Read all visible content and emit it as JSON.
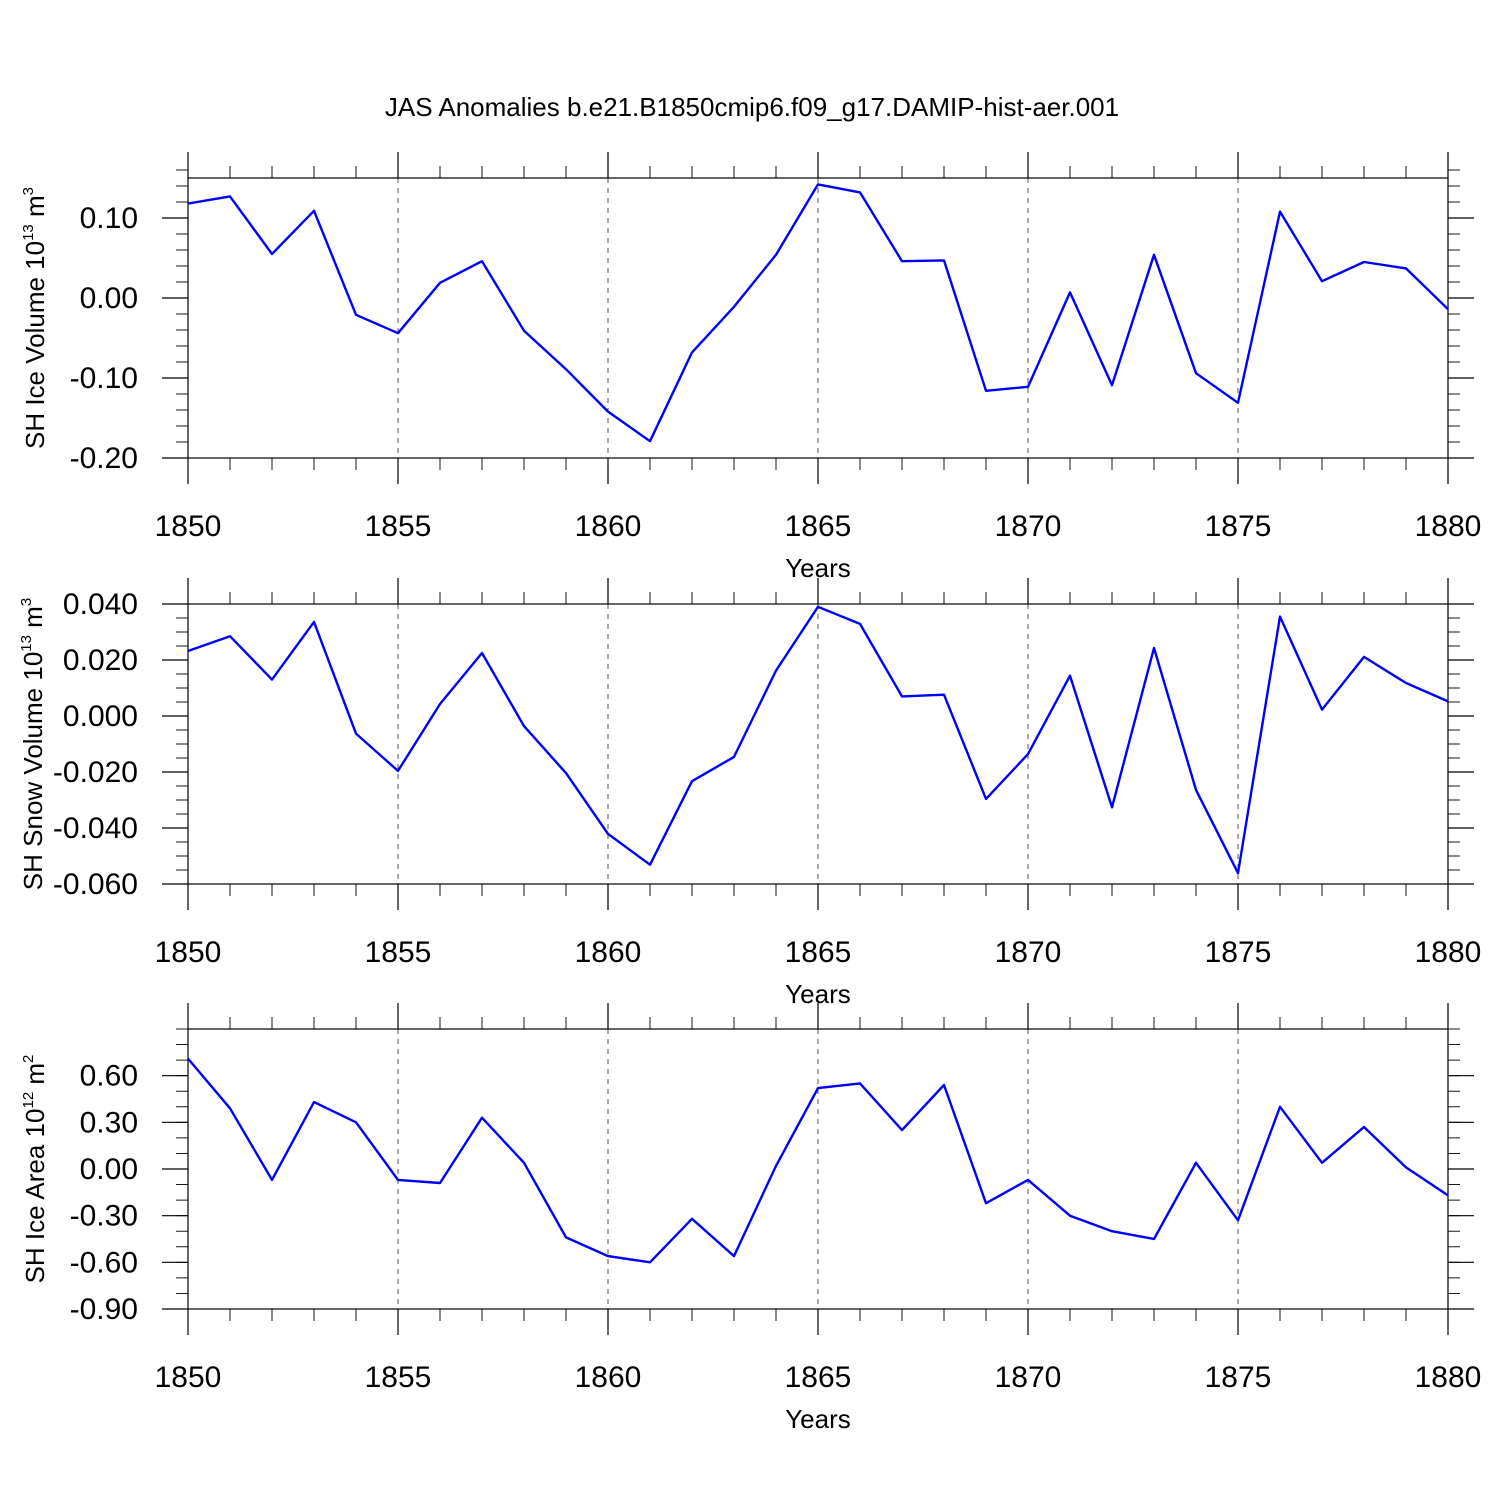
{
  "title": "JAS Anomalies b.e21.B1850cmip6.f09_g17.DAMIP-hist-aer.001",
  "colors": {
    "line": "#0000ff",
    "axis": "#000000",
    "grid": "#555555"
  },
  "chart_data": [
    {
      "type": "line",
      "ylabel_main": "SH Ice Volume 10",
      "ylabel_exp": "13",
      "ylabel_unit": " m",
      "ylabel_unit_exp": "3",
      "xlabel": "Years",
      "xlim": [
        1850,
        1880
      ],
      "ylim": [
        -0.2,
        0.15
      ],
      "yticks": [
        -0.2,
        -0.1,
        0.0,
        0.1
      ],
      "ytick_labels": [
        "-0.20",
        "-0.10",
        "0.00",
        "0.10"
      ],
      "yminor_step": 0.02,
      "xticks": [
        1850,
        1855,
        1860,
        1865,
        1870,
        1875,
        1880
      ],
      "xtick_labels": [
        "1850",
        "1855",
        "1860",
        "1865",
        "1870",
        "1875",
        "1880"
      ],
      "grid_x": [
        1855,
        1860,
        1865,
        1870,
        1875
      ],
      "series": [
        {
          "name": "SH Ice Volume",
          "x": [
            1850,
            1851,
            1852,
            1853,
            1854,
            1855,
            1856,
            1857,
            1858,
            1859,
            1860,
            1861,
            1862,
            1863,
            1864,
            1865,
            1866,
            1867,
            1868,
            1869,
            1870,
            1871,
            1872,
            1873,
            1874,
            1875,
            1876,
            1877,
            1878,
            1879,
            1880
          ],
          "values": [
            0.118,
            0.127,
            0.055,
            0.109,
            -0.021,
            -0.044,
            0.019,
            0.046,
            -0.041,
            -0.089,
            -0.142,
            -0.179,
            -0.068,
            -0.011,
            0.054,
            0.142,
            0.132,
            0.046,
            0.047,
            -0.116,
            -0.111,
            0.007,
            -0.109,
            0.054,
            -0.094,
            -0.131,
            0.108,
            0.021,
            0.045,
            0.037,
            -0.014
          ]
        }
      ]
    },
    {
      "type": "line",
      "ylabel_main": "SH Snow Volume 10",
      "ylabel_exp": "13",
      "ylabel_unit": " m",
      "ylabel_unit_exp": "3",
      "xlabel": "Years",
      "xlim": [
        1850,
        1880
      ],
      "ylim": [
        -0.06,
        0.04
      ],
      "yticks": [
        -0.06,
        -0.04,
        -0.02,
        0.0,
        0.02,
        0.04
      ],
      "ytick_labels": [
        "-0.060",
        "-0.040",
        "-0.020",
        "0.000",
        "0.020",
        "0.040"
      ],
      "yminor_step": 0.005,
      "xticks": [
        1850,
        1855,
        1860,
        1865,
        1870,
        1875,
        1880
      ],
      "xtick_labels": [
        "1850",
        "1855",
        "1860",
        "1865",
        "1870",
        "1875",
        "1880"
      ],
      "grid_x": [
        1855,
        1860,
        1865,
        1870,
        1875
      ],
      "series": [
        {
          "name": "SH Snow Volume",
          "x": [
            1850,
            1851,
            1852,
            1853,
            1854,
            1855,
            1856,
            1857,
            1858,
            1859,
            1860,
            1861,
            1862,
            1863,
            1864,
            1865,
            1866,
            1867,
            1868,
            1869,
            1870,
            1871,
            1872,
            1873,
            1874,
            1875,
            1876,
            1877,
            1878,
            1879,
            1880
          ],
          "values": [
            0.0232,
            0.0285,
            0.013,
            0.0336,
            -0.0063,
            -0.0196,
            0.0043,
            0.0225,
            -0.0036,
            -0.0204,
            -0.0421,
            -0.0531,
            -0.0233,
            -0.0146,
            0.0162,
            0.039,
            0.0329,
            0.007,
            0.0076,
            -0.0296,
            -0.0136,
            0.0144,
            -0.0326,
            0.0243,
            -0.0264,
            -0.0561,
            0.0355,
            0.0023,
            0.0211,
            0.0118,
            0.0052
          ]
        }
      ]
    },
    {
      "type": "line",
      "ylabel_main": "SH Ice Area 10",
      "ylabel_exp": "12",
      "ylabel_unit": " m",
      "ylabel_unit_exp": "2",
      "xlabel": "Years",
      "xlim": [
        1850,
        1880
      ],
      "ylim": [
        -0.9,
        0.9
      ],
      "yticks": [
        -0.9,
        -0.6,
        -0.3,
        0.0,
        0.3,
        0.6
      ],
      "ytick_labels": [
        "-0.90",
        "-0.60",
        "-0.30",
        "0.00",
        "0.30",
        "0.60"
      ],
      "yminor_step": 0.1,
      "xticks": [
        1850,
        1855,
        1860,
        1865,
        1870,
        1875,
        1880
      ],
      "xtick_labels": [
        "1850",
        "1855",
        "1860",
        "1865",
        "1870",
        "1875",
        "1880"
      ],
      "grid_x": [
        1855,
        1860,
        1865,
        1870,
        1875
      ],
      "series": [
        {
          "name": "SH Ice Area",
          "x": [
            1850,
            1851,
            1852,
            1853,
            1854,
            1855,
            1856,
            1857,
            1858,
            1859,
            1860,
            1861,
            1862,
            1863,
            1864,
            1865,
            1866,
            1867,
            1868,
            1869,
            1870,
            1871,
            1872,
            1873,
            1874,
            1875,
            1876,
            1877,
            1878,
            1879,
            1880
          ],
          "values": [
            0.71,
            0.39,
            -0.07,
            0.43,
            0.3,
            -0.07,
            -0.09,
            0.33,
            0.04,
            -0.44,
            -0.56,
            -0.6,
            -0.32,
            -0.56,
            0.02,
            0.52,
            0.55,
            0.25,
            0.54,
            -0.22,
            -0.07,
            -0.3,
            -0.4,
            -0.45,
            0.04,
            -0.33,
            0.4,
            0.04,
            0.27,
            0.01,
            -0.17
          ]
        }
      ]
    }
  ]
}
